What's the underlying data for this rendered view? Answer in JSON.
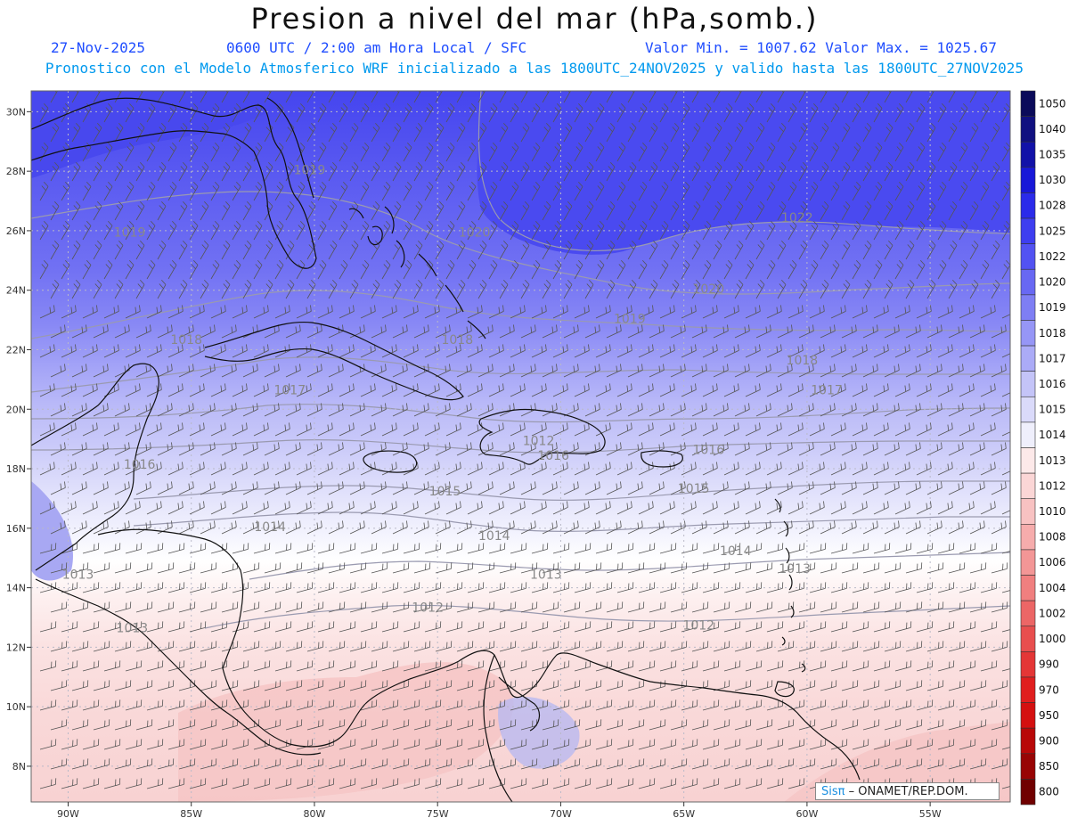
{
  "header": {
    "title": "Presion a nivel del mar (hPa,somb.)",
    "date": "27-Nov-2025",
    "time": "0600 UTC / 2:00 am Hora Local / SFC",
    "minmax": "Valor Min. = 1007.62  Valor Max. = 1025.67",
    "subtitle": "Pronostico con el Modelo Atmosferico WRF inicializado a las 1800UTC_24NOV2025 y valido hasta las  1800UTC_27NOV2025"
  },
  "axes": {
    "lat_labels": [
      "30N",
      "28N",
      "26N",
      "24N",
      "22N",
      "20N",
      "18N",
      "16N",
      "14N",
      "12N",
      "10N",
      "8N"
    ],
    "lon_labels": [
      "90W",
      "85W",
      "80W",
      "75W",
      "70W",
      "65W",
      "60W",
      "55W"
    ]
  },
  "legend": {
    "levels": [
      "1050",
      "1040",
      "1035",
      "1030",
      "1028",
      "1025",
      "1022",
      "1020",
      "1019",
      "1018",
      "1017",
      "1016",
      "1015",
      "1014",
      "1013",
      "1012",
      "1010",
      "1008",
      "1006",
      "1004",
      "1002",
      "1000",
      "990",
      "970",
      "950",
      "900",
      "850",
      "800"
    ],
    "colors": [
      "#0b0b5a",
      "#101080",
      "#1212a8",
      "#1818d8",
      "#2b2bea",
      "#3e3ef0",
      "#5252f2",
      "#6868f3",
      "#7e7ef4",
      "#9696f6",
      "#ababf7",
      "#c4c4f8",
      "#dadafa",
      "#efeffc",
      "#fde9e9",
      "#fbd6d6",
      "#f8c2c2",
      "#f6acac",
      "#f39696",
      "#f07f7f",
      "#ec6666",
      "#e84e4e",
      "#e43636",
      "#e01e1e",
      "#d41010",
      "#b80808",
      "#980404",
      "#700000"
    ]
  },
  "contours": [
    {
      "label": "1022",
      "lon": -60.4,
      "lat": 26.3
    },
    {
      "label": "1020",
      "lon": -73.5,
      "lat": 25.8
    },
    {
      "label": "1020",
      "lon": -64.0,
      "lat": 23.9
    },
    {
      "label": "1019",
      "lon": -87.5,
      "lat": 25.8
    },
    {
      "label": "1019",
      "lon": -80.2,
      "lat": 27.9
    },
    {
      "label": "1019",
      "lon": -67.2,
      "lat": 22.9
    },
    {
      "label": "1018",
      "lon": -85.2,
      "lat": 22.2
    },
    {
      "label": "1018",
      "lon": -74.2,
      "lat": 22.2
    },
    {
      "label": "1018",
      "lon": -60.2,
      "lat": 21.5
    },
    {
      "label": "1017",
      "lon": -81.0,
      "lat": 20.5
    },
    {
      "label": "1017",
      "lon": -59.2,
      "lat": 20.5
    },
    {
      "label": "1016",
      "lon": -87.1,
      "lat": 18.0
    },
    {
      "label": "1016",
      "lon": -64.0,
      "lat": 18.5
    },
    {
      "label": "1016",
      "lon": -70.3,
      "lat": 18.3
    },
    {
      "label": "1015",
      "lon": -74.7,
      "lat": 17.1
    },
    {
      "label": "1015",
      "lon": -64.6,
      "lat": 17.2
    },
    {
      "label": "1014",
      "lon": -81.8,
      "lat": 15.9
    },
    {
      "label": "1014",
      "lon": -72.7,
      "lat": 15.6
    },
    {
      "label": "1014",
      "lon": -62.9,
      "lat": 15.1
    },
    {
      "label": "1013",
      "lon": -70.6,
      "lat": 14.3
    },
    {
      "label": "1013",
      "lon": -60.5,
      "lat": 14.5
    },
    {
      "label": "1012",
      "lon": -75.4,
      "lat": 13.2
    },
    {
      "label": "1012",
      "lon": -64.4,
      "lat": 12.6
    },
    {
      "label": "1013",
      "lon": -89.6,
      "lat": 14.3
    },
    {
      "label": "1013",
      "lon": -87.4,
      "lat": 12.5
    },
    {
      "label": "1012",
      "lon": -70.9,
      "lat": 18.8
    }
  ],
  "credit": {
    "brand": "Sisπ",
    "text": "– ONAMET/REP.DOM."
  }
}
